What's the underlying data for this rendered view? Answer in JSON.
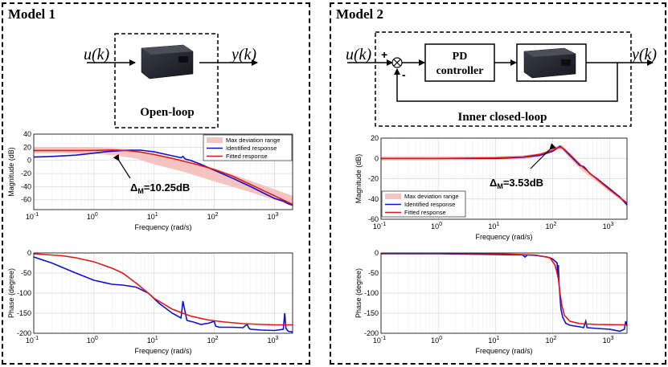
{
  "models": [
    {
      "title": "Model 1",
      "diagram": {
        "input": "u(k)",
        "output": "y(k)",
        "caption": "Open-loop"
      },
      "annotation": {
        "prefix": "Δ",
        "sub": "M",
        "value": "=10.25dB"
      }
    },
    {
      "title": "Model 2",
      "diagram": {
        "input": "u(k)",
        "output": "y(k)",
        "plus": "+",
        "minus": "-",
        "controller_line1": "PD",
        "controller_line2": "controller",
        "caption": "Inner closed-loop"
      },
      "annotation": {
        "prefix": "Δ",
        "sub": "M",
        "value": "=3.53dB"
      }
    }
  ],
  "colors": {
    "band": "#f6c3c3",
    "identified": "#1010d0",
    "fitted": "#e01818",
    "grid": "#d8d8d8"
  },
  "chart_data": [
    {
      "type": "line",
      "id": "m1-mag",
      "xscale": "log",
      "xlim": [
        0.1,
        2000
      ],
      "ylim": [
        -75,
        40
      ],
      "yticks": [
        40,
        20,
        0,
        -20,
        -40,
        -60
      ],
      "xticks": [
        0.1,
        1,
        10,
        100,
        1000
      ],
      "xlabel": "Frequency (rad/s)",
      "ylabel": "Magnitude (dB)",
      "grid": true,
      "legend": "top-right",
      "band": {
        "name": "Max deviation range",
        "x": [
          0.1,
          0.3,
          1,
          2,
          5,
          10,
          30,
          100,
          300,
          1000,
          2000
        ],
        "lower": [
          11,
          11,
          10,
          8,
          3,
          -6,
          -17,
          -32,
          -45,
          -60,
          -70
        ],
        "upper": [
          20,
          20,
          20,
          19,
          16,
          9,
          -1,
          -12,
          -27,
          -44,
          -54
        ]
      },
      "series": [
        {
          "name": "Identified response",
          "role": "identified",
          "x": [
            0.1,
            0.2,
            0.5,
            1,
            1.5,
            2,
            3,
            4,
            6,
            10,
            20,
            28,
            30,
            33,
            40,
            60,
            100,
            200,
            400,
            1000,
            1400,
            1600,
            1800,
            2000
          ],
          "y": [
            5,
            6,
            8,
            11,
            13,
            14,
            15,
            15.5,
            15.5,
            13,
            7,
            4,
            6,
            2,
            0,
            -6,
            -15,
            -27,
            -40,
            -58,
            -62,
            -65,
            -67,
            -68
          ]
        },
        {
          "name": "Fitted response",
          "role": "fitted",
          "x": [
            0.1,
            0.3,
            0.6,
            1,
            1.5,
            2,
            2.5,
            4,
            6,
            10,
            20,
            50,
            100,
            200,
            500,
            1000,
            2000
          ],
          "y": [
            15,
            15,
            15,
            15.2,
            15.5,
            15.8,
            15.5,
            14.5,
            12.5,
            9,
            3,
            -6,
            -14,
            -24,
            -41,
            -54,
            -67
          ]
        }
      ]
    },
    {
      "type": "line",
      "id": "m1-phase",
      "xscale": "log",
      "xlim": [
        0.1,
        2000
      ],
      "ylim": [
        -200,
        0
      ],
      "yticks": [
        0,
        -50,
        -100,
        -150,
        -200
      ],
      "xticks": [
        0.1,
        1,
        10,
        100,
        1000
      ],
      "xlabel": "Frequency (rad/s)",
      "ylabel": "Phase (degree)",
      "grid": true,
      "series": [
        {
          "name": "Identified response",
          "role": "identified",
          "x": [
            0.1,
            0.2,
            0.5,
            1,
            2,
            3,
            5,
            8,
            12,
            20,
            28,
            30,
            32,
            35,
            45,
            60,
            80,
            100,
            105,
            120,
            200,
            300,
            350,
            380,
            400,
            600,
            1000,
            1400,
            1480,
            1550,
            1700,
            2000
          ],
          "y": [
            -10,
            -25,
            -50,
            -68,
            -78,
            -80,
            -85,
            -100,
            -125,
            -150,
            -162,
            -120,
            -140,
            -168,
            -172,
            -178,
            -175,
            -170,
            -182,
            -185,
            -185,
            -186,
            -178,
            -188,
            -190,
            -192,
            -193,
            -190,
            -150,
            -188,
            -195,
            -197
          ]
        },
        {
          "name": "Fitted response",
          "role": "fitted",
          "x": [
            0.1,
            0.3,
            0.5,
            1,
            2,
            3,
            5,
            8,
            10,
            20,
            40,
            80,
            150,
            300,
            600,
            1000,
            2000
          ],
          "y": [
            -2,
            -7,
            -12,
            -22,
            -38,
            -50,
            -75,
            -100,
            -113,
            -140,
            -157,
            -167,
            -172,
            -176,
            -178,
            -179,
            -179
          ]
        }
      ]
    },
    {
      "type": "line",
      "id": "m2-mag",
      "xscale": "log",
      "xlim": [
        0.1,
        2000
      ],
      "ylim": [
        -60,
        20
      ],
      "yticks": [
        20,
        0,
        -20,
        -40,
        -60
      ],
      "xticks": [
        0.1,
        1,
        10,
        100,
        1000
      ],
      "xlabel": "Frequency (rad/s)",
      "ylabel": "Magnitude (dB)",
      "grid": true,
      "legend": "bottom-left",
      "band": {
        "name": "Max deviation range",
        "x": [
          0.1,
          1,
          10,
          30,
          60,
          100,
          130,
          150,
          200,
          300,
          500,
          1000,
          2000
        ],
        "lower": [
          -2,
          -2,
          -1.5,
          -1,
          2,
          6,
          9,
          8,
          0,
          -10,
          -20,
          -33,
          -46
        ],
        "upper": [
          2,
          2,
          2,
          3,
          5,
          10,
          13,
          13,
          4,
          -6,
          -16,
          -29,
          -43
        ]
      },
      "series": [
        {
          "name": "Identified response",
          "role": "identified",
          "x": [
            0.1,
            1,
            10,
            30,
            60,
            100,
            120,
            135,
            150,
            170,
            200,
            300,
            350,
            380,
            450,
            600,
            1000,
            1500,
            2000
          ],
          "y": [
            0,
            0,
            0,
            1,
            3,
            7,
            10,
            12,
            10,
            7,
            3,
            -7,
            -8,
            -10,
            -15,
            -20,
            -30,
            -38,
            -46
          ]
        },
        {
          "name": "Fitted response",
          "role": "fitted",
          "x": [
            0.1,
            1,
            10,
            30,
            60,
            100,
            120,
            140,
            160,
            200,
            300,
            500,
            1000,
            2000
          ],
          "y": [
            0,
            0,
            0.5,
            1.5,
            4,
            8,
            10.5,
            11,
            9,
            4,
            -6,
            -17,
            -31,
            -44
          ]
        }
      ]
    },
    {
      "type": "line",
      "id": "m2-phase",
      "xscale": "log",
      "xlim": [
        0.1,
        2000
      ],
      "ylim": [
        -200,
        0
      ],
      "yticks": [
        0,
        -50,
        -100,
        -150,
        -200
      ],
      "xticks": [
        0.1,
        1,
        10,
        100,
        1000
      ],
      "xlabel": "Frequency (rad/s)",
      "ylabel": "Phase (degree)",
      "grid": true,
      "series": [
        {
          "name": "Identified response",
          "role": "identified",
          "x": [
            0.1,
            1,
            10,
            30,
            33,
            36,
            50,
            80,
            100,
            120,
            123,
            126,
            130,
            135,
            140,
            150,
            170,
            200,
            300,
            350,
            380,
            400,
            600,
            1000,
            1500,
            1800,
            1900,
            2000
          ],
          "y": [
            -2,
            -2,
            -4,
            -5,
            -10,
            -5,
            -6,
            -10,
            -15,
            -25,
            -60,
            -30,
            -75,
            -110,
            -140,
            -160,
            -175,
            -180,
            -184,
            -186,
            -170,
            -186,
            -188,
            -190,
            -195,
            -190,
            -170,
            -182
          ]
        },
        {
          "name": "Fitted response",
          "role": "fitted",
          "x": [
            0.1,
            1,
            10,
            50,
            90,
            110,
            125,
            135,
            145,
            160,
            200,
            300,
            600,
            2000
          ],
          "y": [
            -1,
            -1,
            -2,
            -5,
            -12,
            -30,
            -60,
            -100,
            -130,
            -155,
            -170,
            -176,
            -178,
            -179
          ]
        }
      ]
    }
  ]
}
